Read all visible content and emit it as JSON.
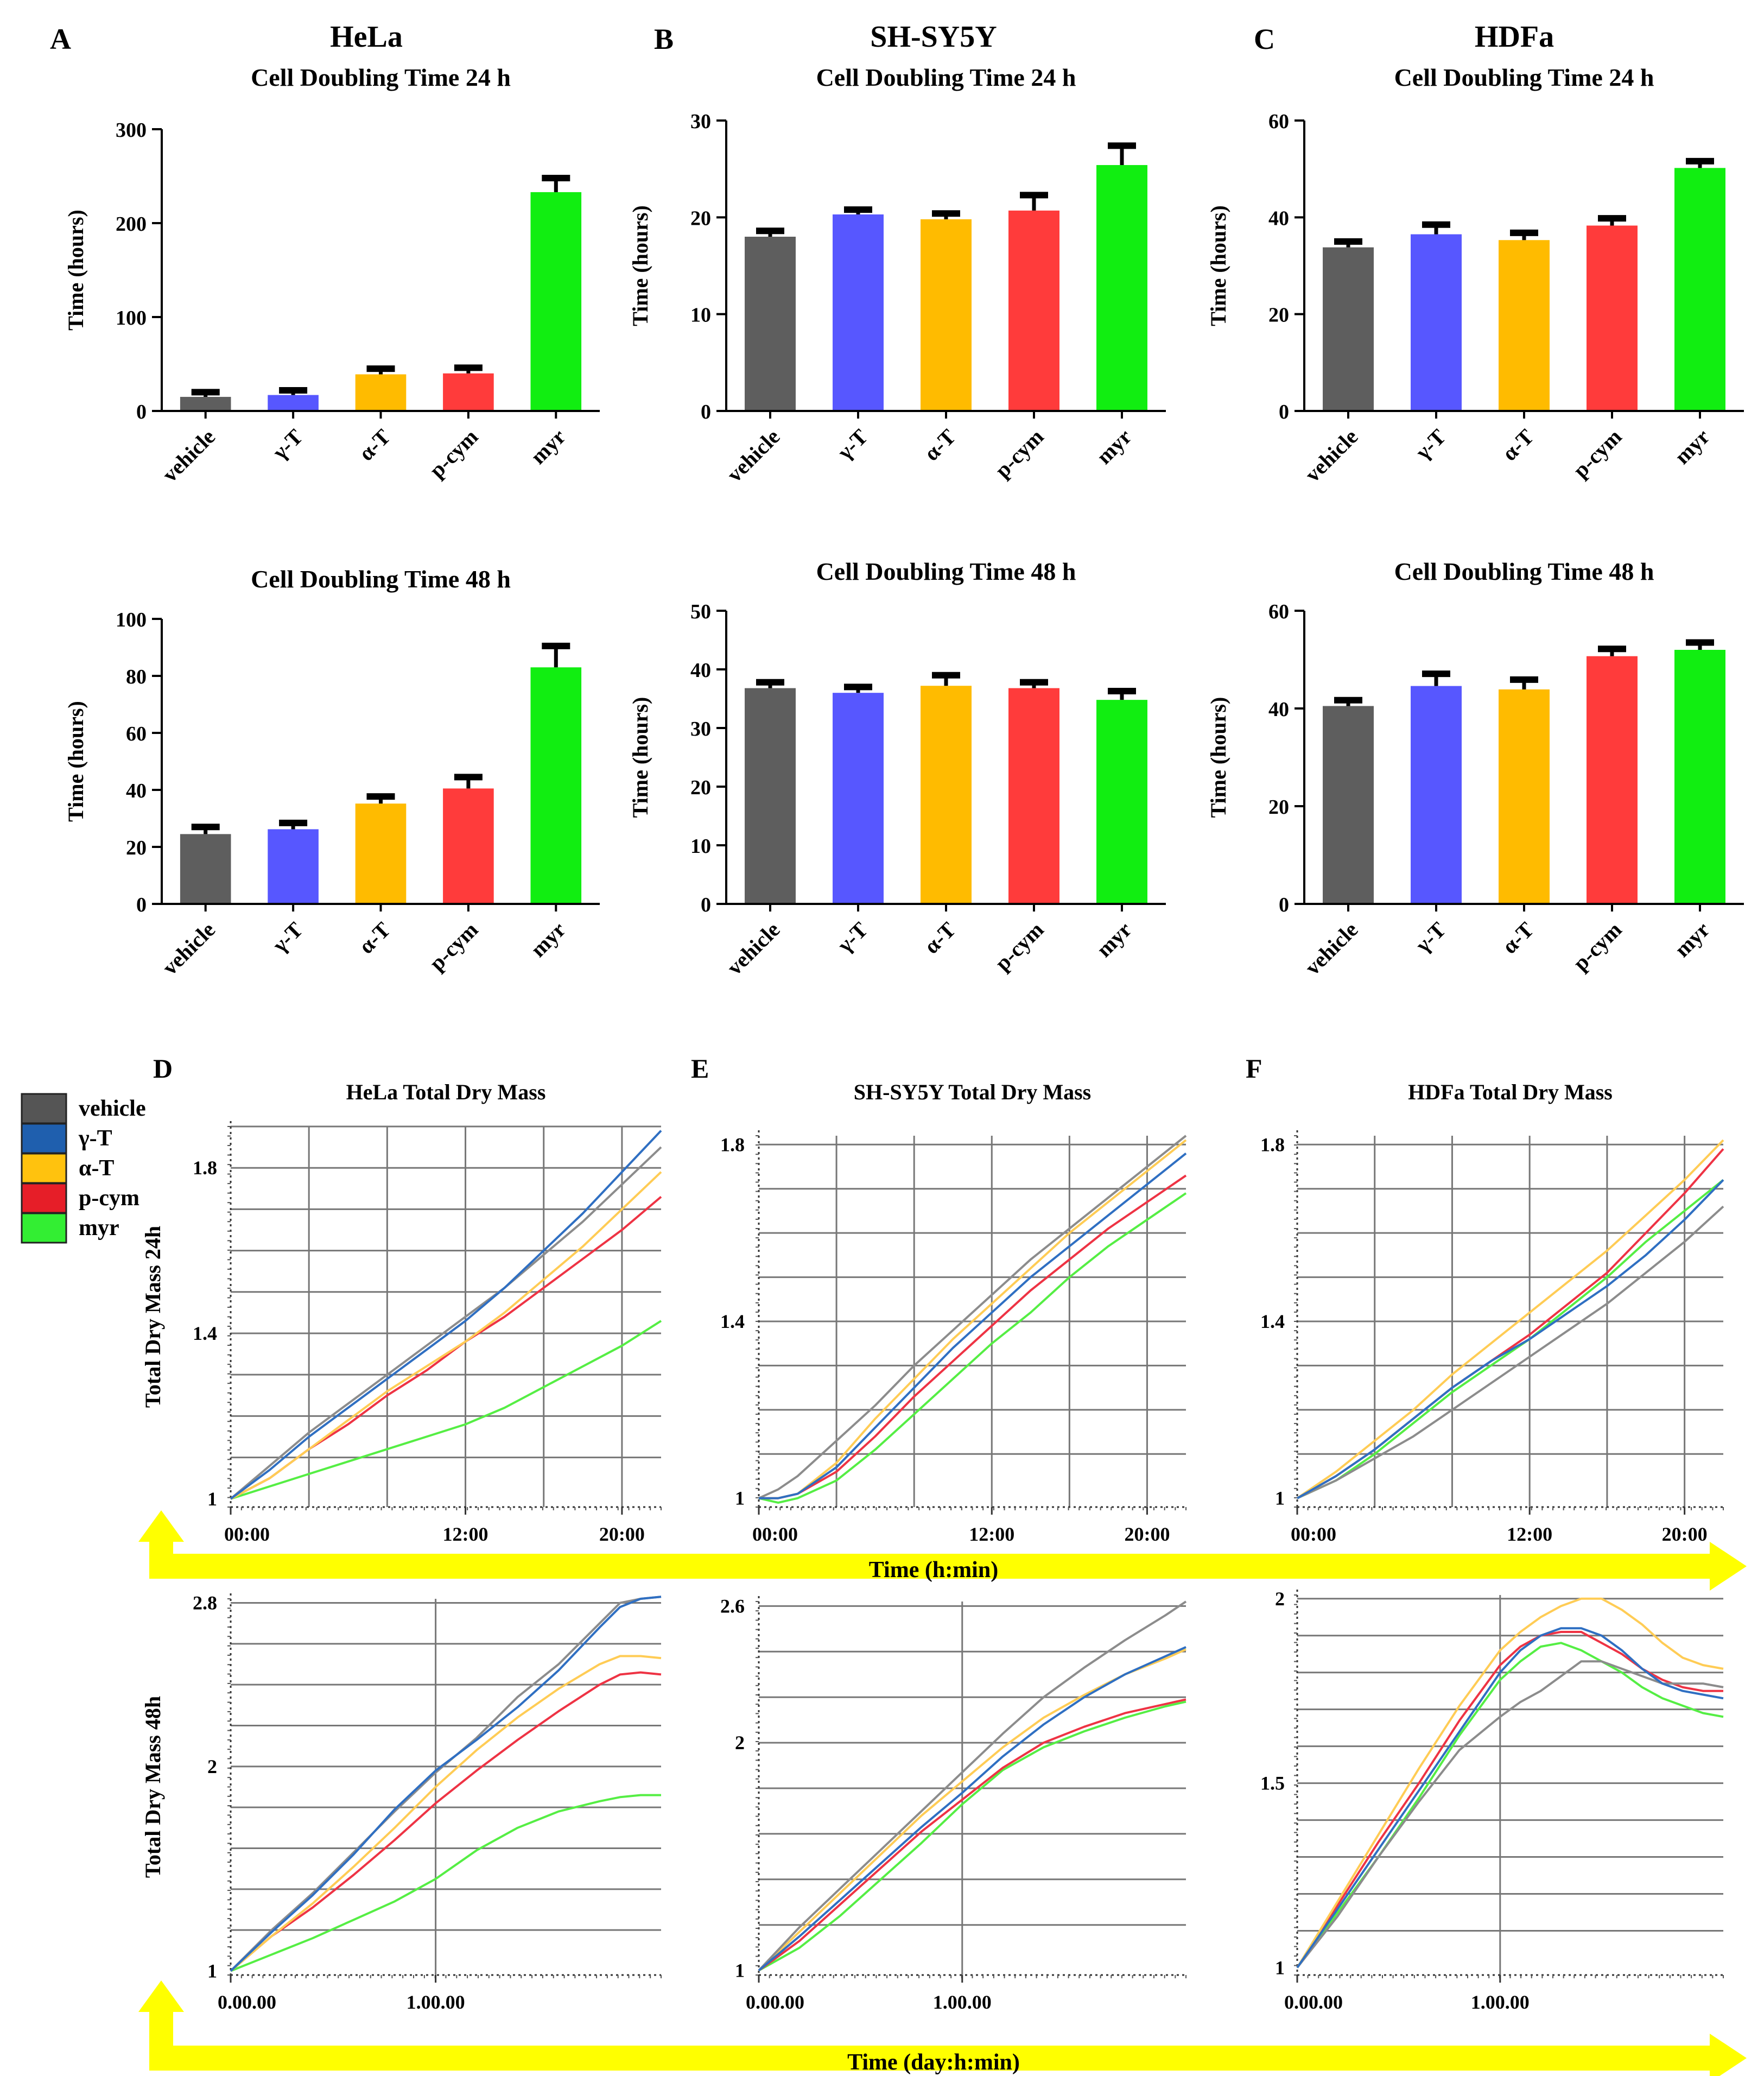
{
  "figure": {
    "colors": {
      "vehicle": "#5e5e5e",
      "gamma_T": "#5757ff",
      "alpha_T": "#ffbb00",
      "p_cym": "#ff3b3b",
      "myr": "#11ee11",
      "line_vehicle": "#8c8c8c",
      "line_gamma_T": "#2f6fc2",
      "line_alpha_T": "#ffcc55",
      "line_p_cym": "#ee3344",
      "line_myr": "#55ee44",
      "legend_vehicle": "#555555",
      "legend_gamma_T": "#1f5fae",
      "legend_alpha_T": "#ffc20e",
      "legend_p_cym": "#e61e28",
      "legend_myr": "#33ee33",
      "arrow": "#ffff00"
    },
    "legend": [
      "vehicle",
      "γ-T",
      "α-T",
      "p-cym",
      "myr"
    ],
    "arrows": {
      "time_24h": "Time (h:min)",
      "time_48h": "Time (day:h:min)"
    }
  },
  "chart_data": [
    {
      "panel": "A",
      "cell_line": "HeLa",
      "type": "bar",
      "title": "Cell Doubling Time 24 h",
      "ylabel": "Time (hours)",
      "ylim": [
        0,
        300
      ],
      "yticks": [
        0,
        100,
        200,
        300
      ],
      "categories": [
        "vehicle",
        "γ-T",
        "α-T",
        "p-cym",
        "myr"
      ],
      "values": [
        15,
        17,
        39,
        40,
        233
      ],
      "errors": [
        5,
        5,
        6,
        6,
        15
      ]
    },
    {
      "panel": "B",
      "cell_line": "SH-SY5Y",
      "type": "bar",
      "title": "Cell Doubling Time 24 h",
      "ylabel": "Time (hours)",
      "ylim": [
        0,
        30
      ],
      "yticks": [
        0,
        10,
        20,
        30
      ],
      "categories": [
        "vehicle",
        "γ-T",
        "α-T",
        "p-cym",
        "myr"
      ],
      "values": [
        18,
        20.3,
        19.8,
        20.7,
        25.4
      ],
      "errors": [
        0.6,
        0.5,
        0.6,
        1.6,
        2
      ]
    },
    {
      "panel": "C",
      "cell_line": "HDFa",
      "type": "bar",
      "title": "Cell Doubling Time 24 h",
      "ylabel": "Time (hours)",
      "ylim": [
        0,
        60
      ],
      "yticks": [
        0,
        20,
        40,
        60
      ],
      "categories": [
        "vehicle",
        "γ-T",
        "α-T",
        "p-cym",
        "myr"
      ],
      "values": [
        33.8,
        36.5,
        35.3,
        38.3,
        50.2
      ],
      "errors": [
        1.2,
        2,
        1.5,
        1.5,
        1.4
      ]
    },
    {
      "panel": "A48",
      "type": "bar",
      "title": "Cell Doubling Time 48 h",
      "ylabel": "Time (hours)",
      "ylim": [
        0,
        100
      ],
      "yticks": [
        0,
        20,
        40,
        60,
        80,
        100
      ],
      "categories": [
        "vehicle",
        "γ-T",
        "α-T",
        "p-cym",
        "myr"
      ],
      "values": [
        24.5,
        26.2,
        35.2,
        40.5,
        83
      ],
      "errors": [
        2.5,
        2.2,
        2.5,
        4,
        7.5
      ]
    },
    {
      "panel": "B48",
      "type": "bar",
      "title": "Cell Doubling Time 48 h",
      "ylabel": "Time (hours)",
      "ylim": [
        0,
        50
      ],
      "yticks": [
        0,
        10,
        20,
        30,
        40,
        50
      ],
      "categories": [
        "vehicle",
        "γ-T",
        "α-T",
        "p-cym",
        "myr"
      ],
      "values": [
        36.8,
        36,
        37.2,
        36.8,
        34.8
      ],
      "errors": [
        1,
        1,
        1.8,
        1,
        1.5
      ]
    },
    {
      "panel": "C48",
      "type": "bar",
      "title": "Cell Doubling Time 48 h",
      "ylabel": "Time (hours)",
      "ylim": [
        0,
        60
      ],
      "yticks": [
        0,
        20,
        40,
        60
      ],
      "categories": [
        "vehicle",
        "γ-T",
        "α-T",
        "p-cym",
        "myr"
      ],
      "values": [
        40.5,
        44.6,
        43.9,
        50.7,
        52
      ],
      "errors": [
        1.2,
        2.5,
        2,
        1.5,
        1.5
      ]
    },
    {
      "panel": "D",
      "type": "line",
      "title": "HeLa Total Dry Mass",
      "ylabel": "Total  Dry Mass 24h",
      "xlim": [
        0,
        22
      ],
      "ylim": [
        0.98,
        1.9
      ],
      "xticks": [
        0,
        12,
        20
      ],
      "xticklabels": [
        "00:00",
        "12:00",
        "20:00"
      ],
      "yticks": [
        1,
        1.4,
        1.8
      ],
      "yticklabels": [
        "1",
        "1.4",
        "1.8"
      ],
      "grid_x": [
        4,
        8,
        12,
        16,
        20
      ],
      "grid_y": [
        1.1,
        1.2,
        1.3,
        1.4,
        1.5,
        1.6,
        1.7,
        1.8,
        1.9
      ],
      "x": [
        0,
        2,
        4,
        6,
        8,
        10,
        12,
        14,
        16,
        18,
        20,
        22
      ],
      "series": [
        {
          "name": "vehicle",
          "values": [
            1,
            1.08,
            1.16,
            1.23,
            1.3,
            1.37,
            1.44,
            1.51,
            1.59,
            1.67,
            1.76,
            1.85
          ]
        },
        {
          "name": "γ-T",
          "values": [
            1,
            1.07,
            1.15,
            1.22,
            1.29,
            1.36,
            1.43,
            1.51,
            1.6,
            1.69,
            1.79,
            1.89
          ]
        },
        {
          "name": "α-T",
          "values": [
            1,
            1.05,
            1.12,
            1.19,
            1.26,
            1.32,
            1.38,
            1.45,
            1.53,
            1.61,
            1.7,
            1.79
          ]
        },
        {
          "name": "p-cym",
          "values": [
            1,
            1.05,
            1.12,
            1.18,
            1.25,
            1.31,
            1.38,
            1.44,
            1.51,
            1.58,
            1.65,
            1.73
          ]
        },
        {
          "name": "myr",
          "values": [
            1,
            1.03,
            1.06,
            1.09,
            1.12,
            1.15,
            1.18,
            1.22,
            1.27,
            1.32,
            1.37,
            1.43
          ]
        }
      ]
    },
    {
      "panel": "E",
      "type": "line",
      "title": "SH-SY5Y Total Dry Mass",
      "xlim": [
        0,
        22
      ],
      "ylim": [
        0.98,
        1.82
      ],
      "xticks": [
        0,
        12,
        20
      ],
      "xticklabels": [
        "00:00",
        "12:00",
        "20:00"
      ],
      "yticks": [
        1,
        1.4,
        1.8
      ],
      "yticklabels": [
        "1",
        "1.4",
        "1.8"
      ],
      "grid_x": [
        4,
        8,
        12,
        16,
        20
      ],
      "grid_y": [
        1.1,
        1.2,
        1.3,
        1.4,
        1.5,
        1.6,
        1.7,
        1.8
      ],
      "x": [
        0,
        1,
        2,
        4,
        6,
        8,
        10,
        12,
        14,
        16,
        18,
        20,
        22
      ],
      "series": [
        {
          "name": "vehicle",
          "values": [
            1,
            1.02,
            1.05,
            1.13,
            1.21,
            1.3,
            1.38,
            1.46,
            1.54,
            1.61,
            1.68,
            1.75,
            1.82
          ]
        },
        {
          "name": "γ-T",
          "values": [
            1,
            1,
            1.01,
            1.07,
            1.16,
            1.25,
            1.34,
            1.42,
            1.5,
            1.57,
            1.64,
            1.71,
            1.78
          ]
        },
        {
          "name": "α-T",
          "values": [
            1,
            1,
            1.01,
            1.08,
            1.18,
            1.27,
            1.36,
            1.44,
            1.52,
            1.6,
            1.67,
            1.74,
            1.81
          ]
        },
        {
          "name": "p-cym",
          "values": [
            1,
            1,
            1.01,
            1.06,
            1.14,
            1.23,
            1.31,
            1.39,
            1.47,
            1.54,
            1.61,
            1.67,
            1.73
          ]
        },
        {
          "name": "myr",
          "values": [
            1,
            0.99,
            1,
            1.04,
            1.11,
            1.19,
            1.27,
            1.35,
            1.42,
            1.5,
            1.57,
            1.63,
            1.69
          ]
        }
      ]
    },
    {
      "panel": "F",
      "type": "line",
      "title": "HDFa Total Dry Mass",
      "xlim": [
        0,
        22
      ],
      "ylim": [
        0.98,
        1.82
      ],
      "xticks": [
        0,
        12,
        20
      ],
      "xticklabels": [
        "00:00",
        "12:00",
        "20:00"
      ],
      "yticks": [
        1,
        1.4,
        1.8
      ],
      "yticklabels": [
        "1",
        "1.4",
        "1.8"
      ],
      "grid_x": [
        4,
        8,
        12,
        16,
        20
      ],
      "grid_y": [
        1.1,
        1.2,
        1.3,
        1.4,
        1.5,
        1.6,
        1.7,
        1.8
      ],
      "x": [
        0,
        2,
        4,
        6,
        8,
        10,
        12,
        14,
        16,
        18,
        20,
        22
      ],
      "series": [
        {
          "name": "vehicle",
          "values": [
            1,
            1.04,
            1.09,
            1.14,
            1.2,
            1.26,
            1.32,
            1.38,
            1.44,
            1.51,
            1.58,
            1.66
          ]
        },
        {
          "name": "γ-T",
          "values": [
            1,
            1.05,
            1.11,
            1.18,
            1.25,
            1.31,
            1.36,
            1.42,
            1.48,
            1.55,
            1.63,
            1.72
          ]
        },
        {
          "name": "α-T",
          "values": [
            1,
            1.06,
            1.13,
            1.2,
            1.28,
            1.35,
            1.42,
            1.49,
            1.56,
            1.64,
            1.72,
            1.81
          ]
        },
        {
          "name": "p-cym",
          "values": [
            1,
            1.05,
            1.11,
            1.18,
            1.25,
            1.31,
            1.37,
            1.44,
            1.51,
            1.6,
            1.69,
            1.79
          ]
        },
        {
          "name": "myr",
          "values": [
            1,
            1.04,
            1.1,
            1.17,
            1.24,
            1.3,
            1.36,
            1.43,
            1.5,
            1.58,
            1.65,
            1.72
          ]
        }
      ]
    },
    {
      "panel": "D48",
      "type": "line",
      "ylabel": "Total  Dry Mass 48h",
      "xlim": [
        0,
        2.1
      ],
      "ylim": [
        0.98,
        2.82
      ],
      "xticks": [
        0,
        1
      ],
      "xticklabels": [
        "0.00.00",
        "1.00.00"
      ],
      "yticks": [
        1,
        2,
        2.8
      ],
      "yticklabels": [
        "1",
        "2",
        "2.8"
      ],
      "grid_x": [
        1
      ],
      "grid_y": [
        1.2,
        1.4,
        1.6,
        1.8,
        2,
        2.2,
        2.4,
        2.6,
        2.8
      ],
      "x": [
        0,
        0.2,
        0.4,
        0.6,
        0.8,
        1,
        1.2,
        1.4,
        1.6,
        1.8,
        1.9,
        2,
        2.1
      ],
      "series": [
        {
          "name": "vehicle",
          "values": [
            1,
            1.2,
            1.38,
            1.58,
            1.78,
            1.97,
            2.14,
            2.34,
            2.5,
            2.7,
            2.8,
            2.82,
            2.83
          ]
        },
        {
          "name": "γ-T",
          "values": [
            1,
            1.19,
            1.37,
            1.57,
            1.79,
            1.98,
            2.13,
            2.29,
            2.47,
            2.68,
            2.78,
            2.82,
            2.83
          ]
        },
        {
          "name": "α-T",
          "values": [
            1,
            1.17,
            1.33,
            1.51,
            1.7,
            1.9,
            2.08,
            2.24,
            2.38,
            2.5,
            2.54,
            2.54,
            2.53
          ]
        },
        {
          "name": "p-cym",
          "values": [
            1,
            1.17,
            1.31,
            1.47,
            1.64,
            1.82,
            1.98,
            2.13,
            2.27,
            2.4,
            2.45,
            2.46,
            2.45
          ]
        },
        {
          "name": "myr",
          "values": [
            1,
            1.08,
            1.16,
            1.25,
            1.34,
            1.45,
            1.59,
            1.7,
            1.78,
            1.83,
            1.85,
            1.86,
            1.86
          ]
        }
      ]
    },
    {
      "panel": "E48",
      "type": "line",
      "xlim": [
        0,
        2.1
      ],
      "ylim": [
        0.98,
        2.62
      ],
      "xticks": [
        0,
        1
      ],
      "xticklabels": [
        "0.00.00",
        "1.00.00"
      ],
      "yticks": [
        1,
        2,
        2.6
      ],
      "yticklabels": [
        "1",
        "2",
        "2.6"
      ],
      "grid_x": [
        1
      ],
      "grid_y": [
        1.2,
        1.4,
        1.6,
        1.8,
        2,
        2.2,
        2.4,
        2.6
      ],
      "x": [
        0,
        0.2,
        0.4,
        0.6,
        0.8,
        1,
        1.2,
        1.4,
        1.6,
        1.8,
        2,
        2.1
      ],
      "series": [
        {
          "name": "vehicle",
          "values": [
            1,
            1.19,
            1.36,
            1.53,
            1.7,
            1.87,
            2.04,
            2.2,
            2.33,
            2.45,
            2.56,
            2.62
          ]
        },
        {
          "name": "γ-T",
          "values": [
            1,
            1.15,
            1.31,
            1.47,
            1.63,
            1.78,
            1.94,
            2.08,
            2.2,
            2.3,
            2.38,
            2.42
          ]
        },
        {
          "name": "α-T",
          "values": [
            1,
            1.17,
            1.34,
            1.51,
            1.68,
            1.83,
            1.98,
            2.11,
            2.21,
            2.3,
            2.37,
            2.41
          ]
        },
        {
          "name": "p-cym",
          "values": [
            1,
            1.13,
            1.29,
            1.45,
            1.61,
            1.75,
            1.89,
            2,
            2.07,
            2.13,
            2.17,
            2.19
          ]
        },
        {
          "name": "myr",
          "values": [
            1,
            1.1,
            1.24,
            1.4,
            1.56,
            1.73,
            1.88,
            1.98,
            2.05,
            2.11,
            2.16,
            2.18
          ]
        }
      ]
    },
    {
      "panel": "F48",
      "type": "line",
      "xlim": [
        0,
        2.1
      ],
      "ylim": [
        0.98,
        2.01
      ],
      "xticks": [
        0,
        1
      ],
      "xticklabels": [
        "0.00.00",
        "1.00.00"
      ],
      "yticks": [
        1,
        1.5,
        2
      ],
      "yticklabels": [
        "1",
        "1.5",
        "2"
      ],
      "grid_x": [
        1
      ],
      "grid_y": [
        1.1,
        1.2,
        1.3,
        1.4,
        1.5,
        1.6,
        1.7,
        1.8,
        1.9,
        2
      ],
      "x": [
        0,
        0.2,
        0.4,
        0.6,
        0.8,
        1,
        1.1,
        1.2,
        1.3,
        1.4,
        1.5,
        1.6,
        1.7,
        1.8,
        1.9,
        2,
        2.1
      ],
      "series": [
        {
          "name": "vehicle",
          "values": [
            1,
            1.14,
            1.3,
            1.45,
            1.59,
            1.68,
            1.72,
            1.75,
            1.79,
            1.83,
            1.83,
            1.81,
            1.79,
            1.77,
            1.77,
            1.77,
            1.76
          ]
        },
        {
          "name": "γ-T",
          "values": [
            1,
            1.16,
            1.32,
            1.48,
            1.64,
            1.8,
            1.86,
            1.9,
            1.92,
            1.92,
            1.9,
            1.86,
            1.81,
            1.77,
            1.75,
            1.74,
            1.73
          ]
        },
        {
          "name": "α-T",
          "values": [
            1,
            1.18,
            1.36,
            1.54,
            1.71,
            1.86,
            1.91,
            1.95,
            1.98,
            2,
            2,
            1.97,
            1.93,
            1.88,
            1.84,
            1.82,
            1.81
          ]
        },
        {
          "name": "p-cym",
          "values": [
            1,
            1.17,
            1.34,
            1.5,
            1.67,
            1.82,
            1.87,
            1.9,
            1.91,
            1.91,
            1.88,
            1.85,
            1.81,
            1.78,
            1.76,
            1.75,
            1.75
          ]
        },
        {
          "name": "myr",
          "values": [
            1,
            1.15,
            1.3,
            1.46,
            1.63,
            1.78,
            1.83,
            1.87,
            1.88,
            1.86,
            1.83,
            1.8,
            1.76,
            1.73,
            1.71,
            1.69,
            1.68
          ]
        }
      ]
    }
  ],
  "labels": {
    "A": {
      "letter": "A",
      "name": "HeLa"
    },
    "B": {
      "letter": "B",
      "name": "SH-SY5Y"
    },
    "C": {
      "letter": "C",
      "name": "HDFa"
    },
    "D": {
      "letter": "D"
    },
    "E": {
      "letter": "E"
    },
    "F": {
      "letter": "F"
    }
  }
}
